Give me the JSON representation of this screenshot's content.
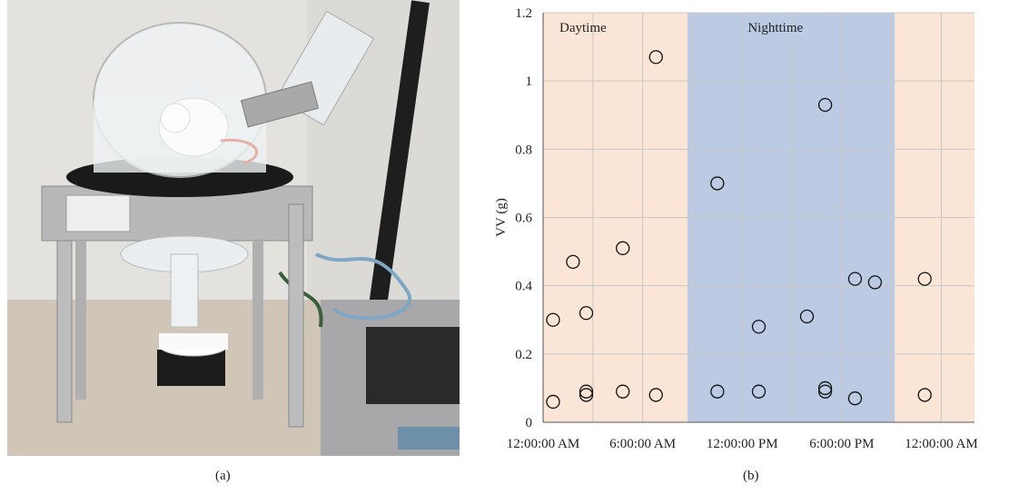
{
  "panel_labels": {
    "a": "(a)",
    "b": "(b)"
  },
  "photo": {
    "description_icon": "rat-metabolic-cage-on-scale-icon"
  },
  "colors": {
    "day": "#fae5d6",
    "night": "#bccbe3",
    "grid": "#c8c8c8",
    "axis": "#555555",
    "marker": "#111111"
  },
  "chart_data": {
    "type": "scatter",
    "ylabel": "VV (g)",
    "xlabel": "",
    "ylim": [
      0,
      1.2
    ],
    "yticks": [
      "0",
      "0.2",
      "0.4",
      "0.6",
      "0.8",
      "1",
      "1.2"
    ],
    "xlim_hours": [
      0,
      26
    ],
    "xticks": [
      {
        "hour": 0,
        "label": "12:00:00 AM"
      },
      {
        "hour": 6,
        "label": "6:00:00 AM"
      },
      {
        "hour": 12,
        "label": "12:00:00 PM"
      },
      {
        "hour": 18,
        "label": "6:00:00 PM"
      },
      {
        "hour": 24,
        "label": "12:00:00 AM"
      }
    ],
    "bands": [
      {
        "name": "Daytime",
        "start_hour": 0,
        "end_hour": 8.7,
        "color": "day"
      },
      {
        "name": "Nighttime",
        "start_hour": 8.7,
        "end_hour": 21.2,
        "color": "night"
      },
      {
        "name": "",
        "start_hour": 21.2,
        "end_hour": 26,
        "color": "day"
      }
    ],
    "band_labels": {
      "day": "Daytime",
      "night": "Nighttime"
    },
    "points": [
      {
        "x": 0.6,
        "y": 0.3
      },
      {
        "x": 0.6,
        "y": 0.06
      },
      {
        "x": 1.8,
        "y": 0.47
      },
      {
        "x": 2.6,
        "y": 0.32
      },
      {
        "x": 2.6,
        "y": 0.09
      },
      {
        "x": 2.6,
        "y": 0.08
      },
      {
        "x": 4.8,
        "y": 0.51
      },
      {
        "x": 4.8,
        "y": 0.09
      },
      {
        "x": 6.8,
        "y": 1.07
      },
      {
        "x": 6.8,
        "y": 0.08
      },
      {
        "x": 10.5,
        "y": 0.7
      },
      {
        "x": 10.5,
        "y": 0.09
      },
      {
        "x": 13.0,
        "y": 0.28
      },
      {
        "x": 13.0,
        "y": 0.09
      },
      {
        "x": 15.9,
        "y": 0.31
      },
      {
        "x": 17.0,
        "y": 0.93
      },
      {
        "x": 17.0,
        "y": 0.1
      },
      {
        "x": 17.0,
        "y": 0.09
      },
      {
        "x": 18.8,
        "y": 0.42
      },
      {
        "x": 18.8,
        "y": 0.07
      },
      {
        "x": 20.0,
        "y": 0.41
      },
      {
        "x": 23.0,
        "y": 0.42
      },
      {
        "x": 23.0,
        "y": 0.08
      }
    ]
  }
}
